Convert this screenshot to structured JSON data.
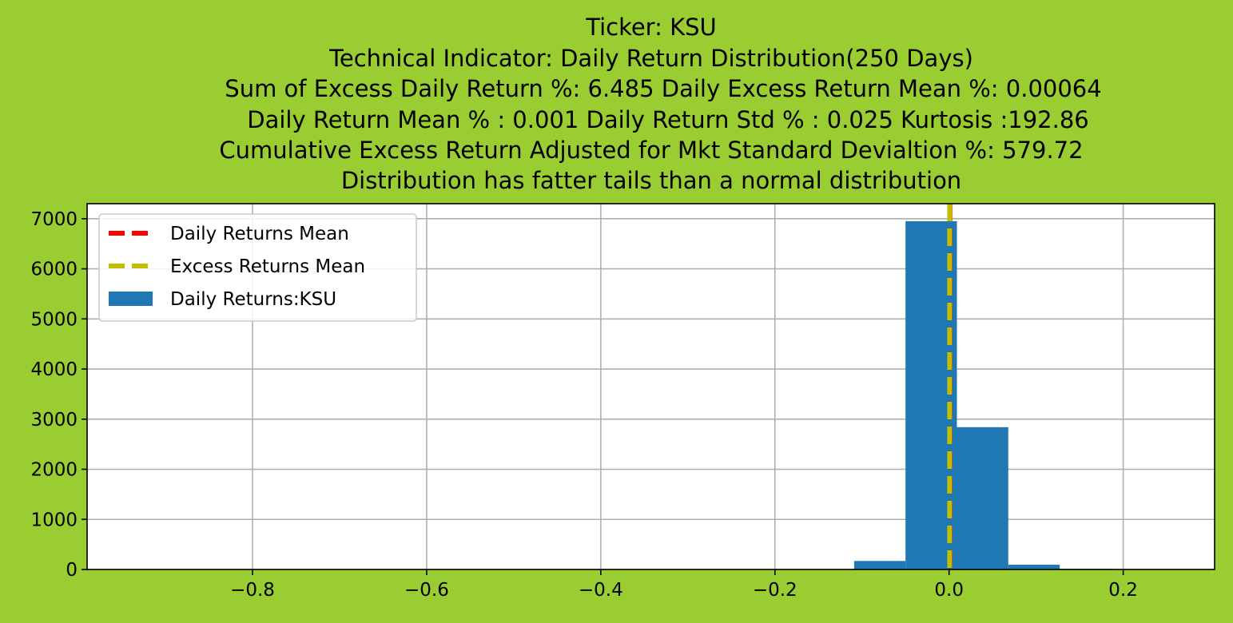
{
  "chart_data": {
    "type": "bar",
    "title_lines": [
      "Ticker: KSU",
      "Technical Indicator: Daily Return Distribution(250 Days)",
      "Sum of Excess Daily Return %: 6.485   Daily Excess Return Mean %: 0.00064",
      "Daily Return Mean % : 0.001    Daily Return Std % : 0.025  Kurtosis :192.86",
      "Cumulative Excess Return Adjusted for Mkt Standard Devialtion %: 579.72",
      "Distribution has fatter tails than a normal distribution"
    ],
    "xlim": [
      -0.99,
      0.305
    ],
    "ylim": [
      0,
      7300
    ],
    "xticks": [
      -0.8,
      -0.6,
      -0.4,
      -0.2,
      0.0,
      0.2
    ],
    "xtick_labels": [
      "−0.8",
      "−0.6",
      "−0.4",
      "−0.2",
      "0.0",
      "0.2"
    ],
    "yticks": [
      0,
      1000,
      2000,
      3000,
      4000,
      5000,
      6000,
      7000
    ],
    "ytick_labels": [
      "0",
      "1000",
      "2000",
      "3000",
      "4000",
      "5000",
      "6000",
      "7000"
    ],
    "grid": true,
    "bins": [
      {
        "x0": -0.9,
        "x1": -0.841,
        "count": 1
      },
      {
        "x0": -0.109,
        "x1": -0.05,
        "count": 170
      },
      {
        "x0": -0.05,
        "x1": 0.009,
        "count": 6950
      },
      {
        "x0": 0.009,
        "x1": 0.068,
        "count": 2840
      },
      {
        "x0": 0.068,
        "x1": 0.127,
        "count": 95
      },
      {
        "x0": 0.127,
        "x1": 0.186,
        "count": 12
      },
      {
        "x0": 0.186,
        "x1": 0.245,
        "count": 3
      }
    ],
    "bar_color": "#1f77b4",
    "vlines": [
      {
        "name": "Daily Returns Mean",
        "x": 0.001,
        "color": "#ff0000"
      },
      {
        "name": "Excess Returns Mean",
        "x": 0.00064,
        "color": "#bfbf00"
      }
    ],
    "legend": {
      "placement": "upper-left",
      "entries": [
        {
          "label": "Daily Returns Mean",
          "kind": "dashed-line",
          "color": "#ff0000"
        },
        {
          "label": "Excess Returns Mean",
          "kind": "dashed-line",
          "color": "#bfbf00"
        },
        {
          "label": "Daily Returns:KSU",
          "kind": "patch",
          "color": "#1f77b4"
        }
      ]
    }
  }
}
